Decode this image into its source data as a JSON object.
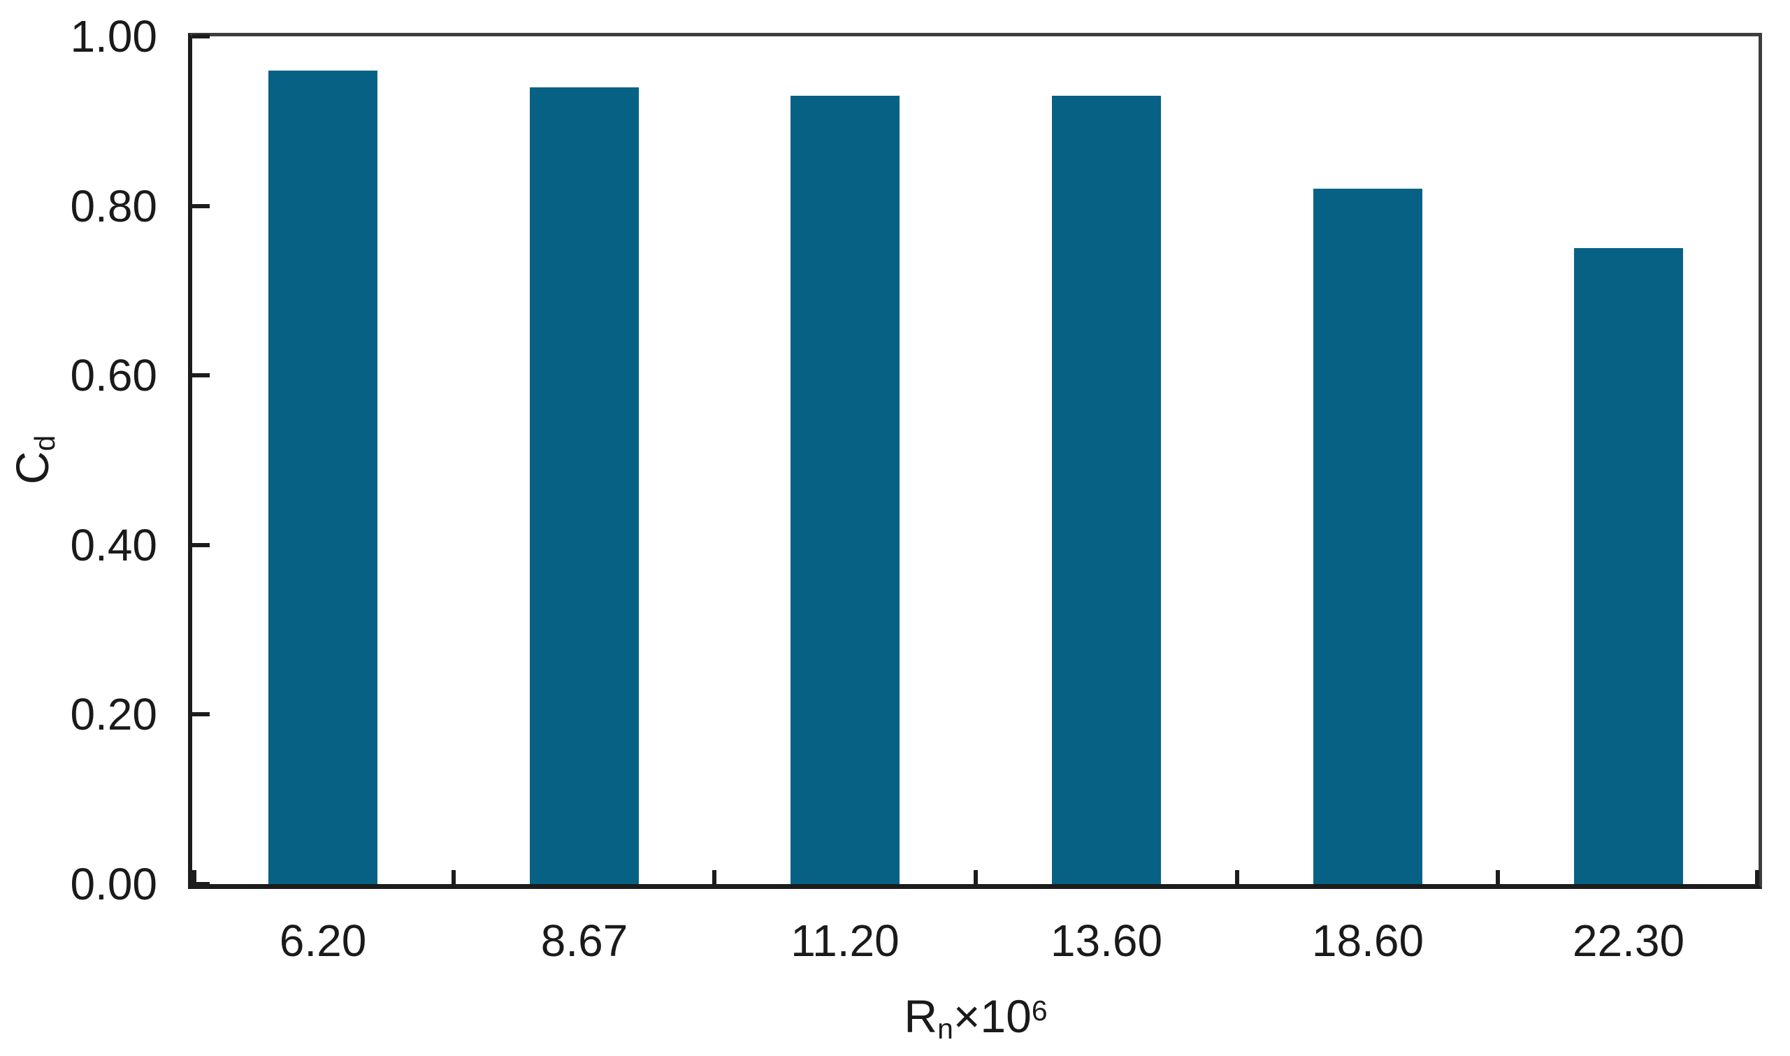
{
  "chart_data": {
    "type": "bar",
    "title": "",
    "categories": [
      "6.20",
      "8.67",
      "11.20",
      "13.60",
      "18.60",
      "22.30"
    ],
    "values": [
      0.96,
      0.94,
      0.93,
      0.93,
      0.82,
      0.75
    ],
    "series": [
      {
        "name": "Cd",
        "values": [
          0.96,
          0.94,
          0.93,
          0.93,
          0.82,
          0.75
        ]
      }
    ],
    "xlabel": "Rn×10^6",
    "xlabel_parts": {
      "base": "R",
      "sub": "n",
      "mult": "×10",
      "sup": "6"
    },
    "ylabel": "Cd",
    "ylabel_parts": {
      "base": "C",
      "sub": "d"
    },
    "ylim": [
      0.0,
      1.0
    ],
    "ytick_values": [
      0.0,
      0.2,
      0.4,
      0.6,
      0.8,
      1.0
    ],
    "ytick_labels": [
      "0.00",
      "0.20",
      "0.40",
      "0.60",
      "0.80",
      "1.00"
    ],
    "grid": false,
    "legend": "none",
    "bar_color": "#076185",
    "axis_color": "#1c1c1c"
  }
}
